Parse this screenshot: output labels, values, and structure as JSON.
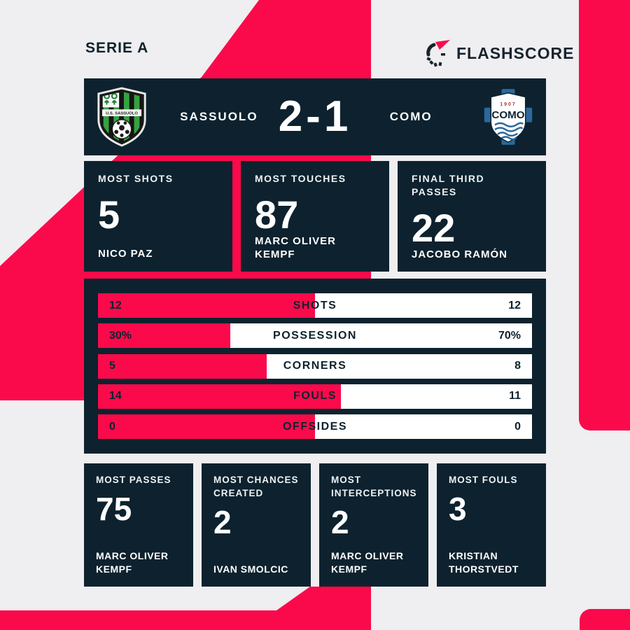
{
  "league": "SERIE A",
  "brand": "FLASHSCORE",
  "scoreboard": {
    "home_team": "SASSUOLO",
    "away_team": "COMO",
    "score": "2-1",
    "sassuolo_banner": "U.S. SASSUOLO",
    "como_year": "1907",
    "como_name": "COMO"
  },
  "top_stats": [
    {
      "label": "MOST SHOTS",
      "value": "5",
      "player": "NICO PAZ"
    },
    {
      "label": "MOST TOUCHES",
      "value": "87",
      "player": "MARC OLIVER KEMPF"
    },
    {
      "label": "FINAL THIRD PASSES",
      "value": "22",
      "player": "JACOBO RAMÓN"
    }
  ],
  "match_stats": [
    {
      "label": "SHOTS",
      "home": "12",
      "away": "12",
      "home_fill_pct": 50
    },
    {
      "label": "POSSESSION",
      "home": "30%",
      "away": "70%",
      "home_fill_pct": 30.5
    },
    {
      "label": "CORNERS",
      "home": "5",
      "away": "8",
      "home_fill_pct": 38.8
    },
    {
      "label": "FOULS",
      "home": "14",
      "away": "11",
      "home_fill_pct": 56
    },
    {
      "label": "OFFSIDES",
      "home": "0",
      "away": "0",
      "home_fill_pct": 50
    }
  ],
  "bottom_stats": [
    {
      "label": "MOST PASSES",
      "value": "75",
      "player": "MARC OLIVER KEMPF"
    },
    {
      "label": "MOST CHANCES CREATED",
      "value": "2",
      "player": "IVAN SMOLCIC"
    },
    {
      "label": "MOST INTERCEPTIONS",
      "value": "2",
      "player": "MARC OLIVER KEMPF"
    },
    {
      "label": "MOST FOULS",
      "value": "3",
      "player": "KRISTIAN THORSTVEDT"
    }
  ],
  "chart_data": {
    "type": "bar",
    "title": "Sassuolo 2-1 Como — match statistics",
    "categories": [
      "SHOTS",
      "POSSESSION",
      "CORNERS",
      "FOULS",
      "OFFSIDES"
    ],
    "series": [
      {
        "name": "SASSUOLO",
        "values": [
          12,
          30,
          5,
          14,
          0
        ]
      },
      {
        "name": "COMO",
        "values": [
          12,
          70,
          8,
          11,
          0
        ]
      }
    ],
    "legend_position": "none",
    "orientation": "horizontal-opposed",
    "home_color": "#fb0a4b",
    "away_color": "#ffffff"
  },
  "colors": {
    "accent_pink": "#fb0a4b",
    "dark_navy": "#0d222e",
    "background": "#efeef0",
    "white": "#ffffff",
    "como_blue": "#2b689c",
    "sassuolo_green": "#35a341"
  }
}
